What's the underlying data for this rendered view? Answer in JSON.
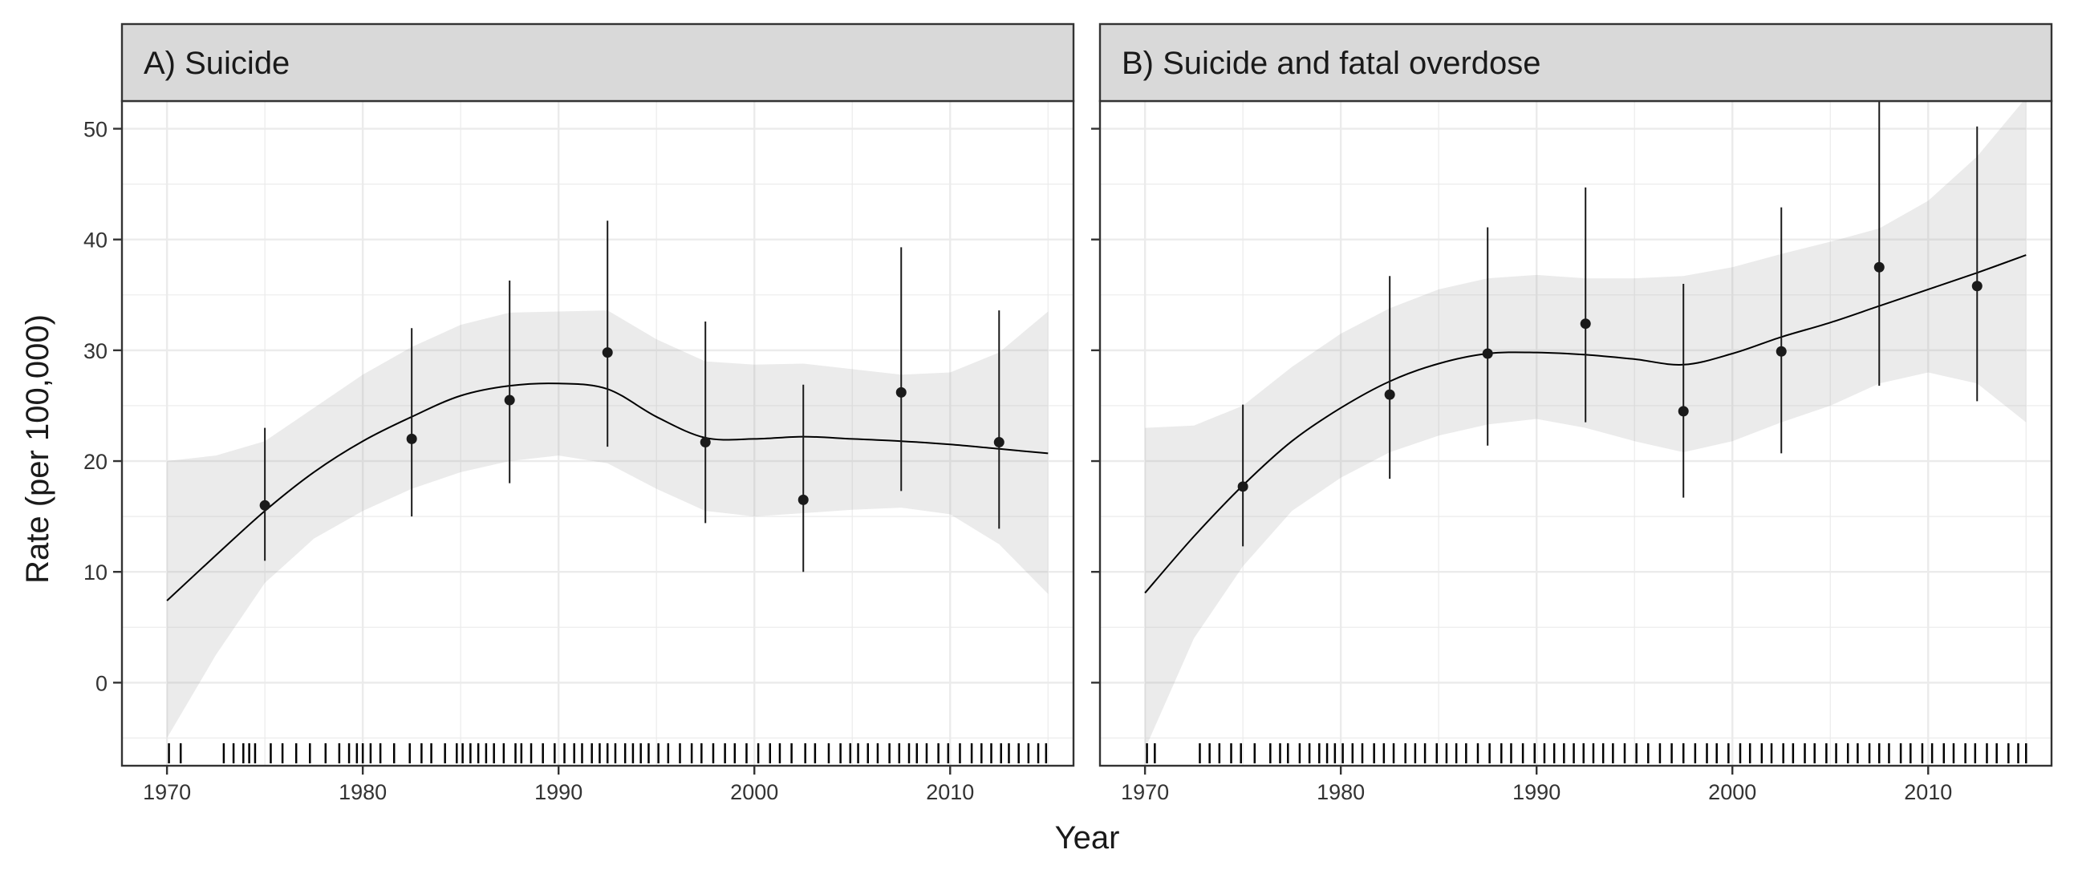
{
  "figure": {
    "ylabel": "Rate (per 100,000)",
    "xlabel": "Year"
  },
  "chart_data": [
    {
      "type": "line",
      "panel": "A",
      "title": "A) Suicide",
      "xlabel": "Year",
      "ylabel": "Rate (per 100,000)",
      "xlim": [
        1967.7,
        2016.3
      ],
      "ylim": [
        -7.5,
        52.5
      ],
      "x_ticks": [
        1970,
        1980,
        1990,
        2000,
        2010
      ],
      "y_ticks": [
        0,
        10,
        20,
        30,
        40,
        50
      ],
      "grid": true,
      "points": [
        {
          "x": 1975,
          "y": 16.0,
          "lo": 11.0,
          "hi": 23.0
        },
        {
          "x": 1982.5,
          "y": 22.0,
          "lo": 15.0,
          "hi": 32.0
        },
        {
          "x": 1987.5,
          "y": 25.5,
          "lo": 18.0,
          "hi": 36.3
        },
        {
          "x": 1992.5,
          "y": 29.8,
          "lo": 21.3,
          "hi": 41.7
        },
        {
          "x": 1997.5,
          "y": 21.7,
          "lo": 14.4,
          "hi": 32.6
        },
        {
          "x": 2002.5,
          "y": 16.5,
          "lo": 10.0,
          "hi": 26.9
        },
        {
          "x": 2007.5,
          "y": 26.2,
          "lo": 17.3,
          "hi": 39.3
        },
        {
          "x": 2012.5,
          "y": 21.7,
          "lo": 13.9,
          "hi": 33.6
        }
      ],
      "smooth": {
        "x": [
          1970,
          1972.5,
          1975,
          1977.5,
          1980,
          1982.5,
          1985,
          1987.5,
          1990,
          1992.5,
          1995,
          1997.5,
          2000,
          2002.5,
          2005,
          2007.5,
          2010,
          2012.5,
          2015
        ],
        "y": [
          7.4,
          11.5,
          15.5,
          19.0,
          21.8,
          24.0,
          25.9,
          26.8,
          27.0,
          26.5,
          24.0,
          22.1,
          22.0,
          22.2,
          22.0,
          21.8,
          21.5,
          21.1,
          20.7
        ],
        "lower": [
          -5.0,
          2.5,
          9.0,
          13.0,
          15.5,
          17.5,
          19.0,
          20.0,
          20.5,
          19.8,
          17.5,
          15.5,
          15.0,
          15.3,
          15.6,
          15.8,
          15.2,
          12.5,
          8.0
        ],
        "upper": [
          20.0,
          20.5,
          21.8,
          24.8,
          27.8,
          30.3,
          32.3,
          33.4,
          33.5,
          33.6,
          31.0,
          29.0,
          28.7,
          28.8,
          28.3,
          27.8,
          28.0,
          29.8,
          33.5
        ]
      },
      "rug_x": [
        1970.1,
        1970.7,
        1972.9,
        1973.4,
        1973.9,
        1974.2,
        1974.5,
        1975.3,
        1975.9,
        1976.6,
        1977.3,
        1978.1,
        1978.8,
        1979.3,
        1979.7,
        1980.0,
        1980.4,
        1980.9,
        1981.6,
        1982.4,
        1983.0,
        1983.5,
        1984.2,
        1984.8,
        1985.1,
        1985.5,
        1985.9,
        1986.3,
        1986.7,
        1987.2,
        1987.8,
        1988.1,
        1988.6,
        1989.2,
        1989.8,
        1990.3,
        1990.8,
        1991.2,
        1991.7,
        1992.1,
        1992.5,
        1992.9,
        1993.4,
        1993.8,
        1994.2,
        1994.6,
        1995.1,
        1995.6,
        1996.2,
        1996.8,
        1997.3,
        1997.9,
        1998.5,
        1999.0,
        1999.6,
        2000.2,
        2000.8,
        2001.3,
        2001.9,
        2002.6,
        2003.1,
        2003.8,
        2004.4,
        2004.9,
        2005.3,
        2005.8,
        2006.3,
        2006.9,
        2007.4,
        2007.9,
        2008.3,
        2008.8,
        2009.4,
        2009.9,
        2010.5,
        2011.1,
        2011.6,
        2012.1,
        2012.6,
        2013.0,
        2013.5,
        2014.0,
        2014.5,
        2014.9
      ]
    },
    {
      "type": "line",
      "panel": "B",
      "title": "B) Suicide and fatal overdose",
      "xlabel": "Year",
      "ylabel": "Rate (per 100,000)",
      "xlim": [
        1967.7,
        2016.3
      ],
      "ylim": [
        -7.5,
        52.5
      ],
      "x_ticks": [
        1970,
        1980,
        1990,
        2000,
        2010
      ],
      "y_ticks": [
        0,
        10,
        20,
        30,
        40,
        50
      ],
      "grid": true,
      "points": [
        {
          "x": 1975,
          "y": 17.7,
          "lo": 12.3,
          "hi": 25.1
        },
        {
          "x": 1982.5,
          "y": 26.0,
          "lo": 18.4,
          "hi": 36.7
        },
        {
          "x": 1987.5,
          "y": 29.7,
          "lo": 21.4,
          "hi": 41.1
        },
        {
          "x": 1992.5,
          "y": 32.4,
          "lo": 23.5,
          "hi": 44.7
        },
        {
          "x": 1997.5,
          "y": 24.5,
          "lo": 16.7,
          "hi": 36.0
        },
        {
          "x": 2002.5,
          "y": 29.9,
          "lo": 20.7,
          "hi": 42.9
        },
        {
          "x": 2007.5,
          "y": 37.5,
          "lo": 26.8,
          "hi": 52.5
        },
        {
          "x": 2012.5,
          "y": 35.8,
          "lo": 25.4,
          "hi": 50.2
        }
      ],
      "smooth": {
        "x": [
          1970,
          1972.5,
          1975,
          1977.5,
          1980,
          1982.5,
          1985,
          1987.5,
          1990,
          1992.5,
          1995,
          1997.5,
          2000,
          2002.5,
          2005,
          2007.5,
          2010,
          2012.5,
          2015
        ],
        "y": [
          8.1,
          13.2,
          17.8,
          21.8,
          24.8,
          27.2,
          28.8,
          29.7,
          29.8,
          29.6,
          29.2,
          28.7,
          29.7,
          31.2,
          32.5,
          34.0,
          35.5,
          37.0,
          38.6
        ],
        "lower": [
          -6.0,
          4.0,
          10.5,
          15.5,
          18.5,
          20.8,
          22.3,
          23.3,
          23.8,
          23.0,
          21.8,
          20.8,
          21.8,
          23.5,
          25.0,
          27.0,
          28.0,
          27.0,
          23.5
        ],
        "upper": [
          23.0,
          23.2,
          25.0,
          28.5,
          31.5,
          33.8,
          35.5,
          36.5,
          36.8,
          36.5,
          36.5,
          36.7,
          37.5,
          38.7,
          39.8,
          41.0,
          43.5,
          47.5,
          52.8
        ]
      },
      "rug_x": [
        1970.1,
        1970.5,
        1972.8,
        1973.3,
        1973.8,
        1974.4,
        1974.9,
        1975.6,
        1976.4,
        1976.9,
        1977.3,
        1977.9,
        1978.4,
        1978.9,
        1979.3,
        1979.7,
        1980.1,
        1980.6,
        1981.1,
        1981.7,
        1982.2,
        1982.7,
        1983.3,
        1983.8,
        1984.3,
        1984.9,
        1985.4,
        1985.9,
        1986.4,
        1987.0,
        1987.6,
        1988.2,
        1988.7,
        1989.3,
        1989.9,
        1990.4,
        1990.9,
        1991.4,
        1991.9,
        1992.4,
        1992.9,
        1993.4,
        1993.9,
        1994.5,
        1995.1,
        1995.7,
        1996.3,
        1996.9,
        1997.5,
        1998.1,
        1998.7,
        1999.2,
        1999.8,
        2000.4,
        2000.9,
        2001.5,
        2002.0,
        2002.6,
        2003.1,
        2003.7,
        2004.2,
        2004.8,
        2005.3,
        2005.9,
        2006.4,
        2007.0,
        2007.5,
        2008.0,
        2008.6,
        2009.1,
        2009.7,
        2010.2,
        2010.8,
        2011.3,
        2011.9,
        2012.4,
        2013.0,
        2013.5,
        2014.1,
        2014.6,
        2015.0
      ]
    }
  ]
}
